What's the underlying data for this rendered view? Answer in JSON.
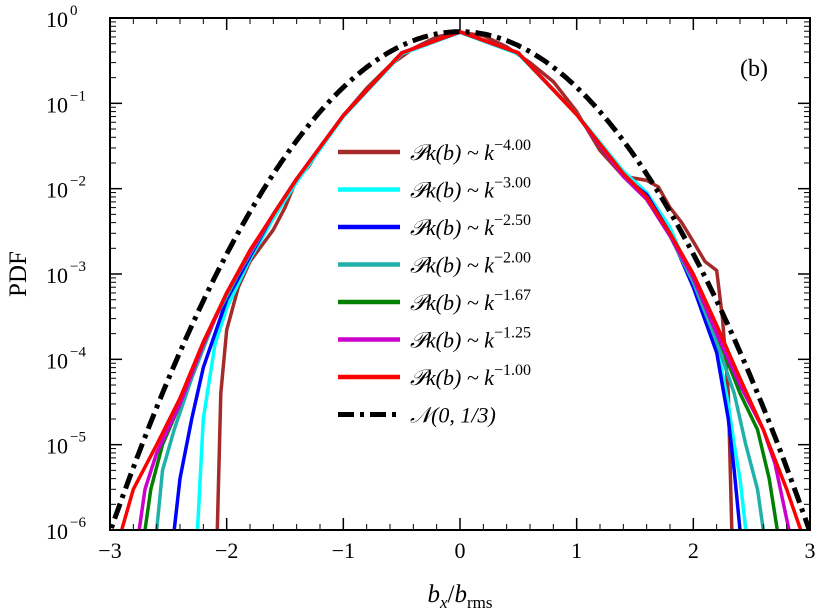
{
  "chart_data": {
    "type": "line",
    "panel_label": "(b)",
    "xlabel_main": "b",
    "xlabel_main_sub": "x",
    "xlabel_slash": "/",
    "xlabel_denom": "b",
    "xlabel_denom_sub": "rms",
    "ylabel": "PDF",
    "xlim": [
      -3,
      3
    ],
    "ylim": [
      1e-06,
      1
    ],
    "yscale": "log",
    "x_ticks": [
      -3,
      -2,
      -1,
      0,
      1,
      2,
      3
    ],
    "x_tick_labels": [
      "−3",
      "−2",
      "−1",
      "0",
      "1",
      "2",
      "3"
    ],
    "y_ticks": [
      {
        "value": 1e-06,
        "base": "10",
        "exp": "−6"
      },
      {
        "value": 1e-05,
        "base": "10",
        "exp": "−5"
      },
      {
        "value": 0.0001,
        "base": "10",
        "exp": "−4"
      },
      {
        "value": 0.001,
        "base": "10",
        "exp": "−3"
      },
      {
        "value": 0.01,
        "base": "10",
        "exp": "−2"
      },
      {
        "value": 0.1,
        "base": "10",
        "exp": "−1"
      },
      {
        "value": 1,
        "base": "10",
        "exp": "0"
      }
    ],
    "legend_position": "center",
    "grid": false,
    "series": [
      {
        "legend_main": "𝒫k(b) ~ k",
        "legend_exp": "−4.00",
        "color": "#a52a2a",
        "range": [
          -2.08,
          2.33
        ],
        "points": [
          [
            -2.08,
            1e-06
          ],
          [
            -2.05,
            4e-05
          ],
          [
            -2.0,
            0.00022
          ],
          [
            -1.9,
            0.0007
          ],
          [
            -1.8,
            0.0014
          ],
          [
            -1.6,
            0.0033
          ],
          [
            -1.5,
            0.006
          ],
          [
            -1.4,
            0.013
          ],
          [
            -1.3,
            0.018
          ],
          [
            -1.2,
            0.03
          ],
          [
            -1.0,
            0.072
          ],
          [
            -0.8,
            0.15
          ],
          [
            -0.6,
            0.28
          ],
          [
            -0.4,
            0.44
          ],
          [
            -0.2,
            0.6
          ],
          [
            0,
            0.68
          ],
          [
            0.2,
            0.62
          ],
          [
            0.4,
            0.46
          ],
          [
            0.6,
            0.3
          ],
          [
            0.8,
            0.18
          ],
          [
            1.0,
            0.08
          ],
          [
            1.2,
            0.028
          ],
          [
            1.4,
            0.014
          ],
          [
            1.6,
            0.0125
          ],
          [
            1.7,
            0.0105
          ],
          [
            1.8,
            0.006
          ],
          [
            1.9,
            0.004
          ],
          [
            2.0,
            0.0024
          ],
          [
            2.1,
            0.0014
          ],
          [
            2.2,
            0.0011
          ],
          [
            2.25,
            0.0003
          ],
          [
            2.3,
            4e-05
          ],
          [
            2.33,
            1e-06
          ]
        ]
      },
      {
        "legend_main": "𝒫k(b) ~ k",
        "legend_exp": "−3.00",
        "color": "#00ffff",
        "range": [
          -2.25,
          2.45
        ],
        "points": [
          [
            -2.25,
            1e-06
          ],
          [
            -2.2,
            2e-05
          ],
          [
            -2.1,
            0.00015
          ],
          [
            -2.0,
            0.0004
          ],
          [
            -1.8,
            0.0015
          ],
          [
            -1.6,
            0.0045
          ],
          [
            -1.4,
            0.012
          ],
          [
            -1.0,
            0.07
          ],
          [
            -0.5,
            0.38
          ],
          [
            0,
            0.68
          ],
          [
            0.5,
            0.38
          ],
          [
            1.0,
            0.075
          ],
          [
            1.4,
            0.016
          ],
          [
            1.6,
            0.009
          ],
          [
            1.8,
            0.0035
          ],
          [
            2.0,
            0.0008
          ],
          [
            2.2,
            0.00015
          ],
          [
            2.3,
            3e-05
          ],
          [
            2.35,
            1e-05
          ],
          [
            2.4,
            4e-06
          ],
          [
            2.45,
            1e-06
          ]
        ]
      },
      {
        "legend_main": "𝒫k(b) ~ k",
        "legend_exp": "−2.50",
        "color": "#0000ff",
        "range": [
          -2.45,
          2.4
        ],
        "points": [
          [
            -2.45,
            1e-06
          ],
          [
            -2.4,
            4e-06
          ],
          [
            -2.3,
            2e-05
          ],
          [
            -2.2,
            8e-05
          ],
          [
            -2.0,
            0.0005
          ],
          [
            -1.8,
            0.0016
          ],
          [
            -1.6,
            0.005
          ],
          [
            -1.4,
            0.013
          ],
          [
            -1.0,
            0.072
          ],
          [
            -0.5,
            0.39
          ],
          [
            0,
            0.69
          ],
          [
            0.5,
            0.39
          ],
          [
            1.0,
            0.074
          ],
          [
            1.4,
            0.014
          ],
          [
            1.6,
            0.0085
          ],
          [
            1.8,
            0.003
          ],
          [
            2.0,
            0.0007
          ],
          [
            2.2,
            0.00012
          ],
          [
            2.3,
            2e-05
          ],
          [
            2.35,
            5e-06
          ],
          [
            2.4,
            1e-06
          ]
        ]
      },
      {
        "legend_main": "𝒫k(b) ~ k",
        "legend_exp": "−2.00",
        "color": "#20b2aa",
        "range": [
          -2.6,
          2.6
        ],
        "points": [
          [
            -2.6,
            1e-06
          ],
          [
            -2.55,
            5e-06
          ],
          [
            -2.45,
            1.5e-05
          ],
          [
            -2.3,
            6e-05
          ],
          [
            -2.1,
            0.0003
          ],
          [
            -1.9,
            0.001
          ],
          [
            -1.6,
            0.005
          ],
          [
            -1.4,
            0.013
          ],
          [
            -1.0,
            0.072
          ],
          [
            -0.5,
            0.39
          ],
          [
            0,
            0.69
          ],
          [
            0.5,
            0.39
          ],
          [
            1.0,
            0.074
          ],
          [
            1.4,
            0.014
          ],
          [
            1.6,
            0.0075
          ],
          [
            1.8,
            0.0028
          ],
          [
            2.0,
            0.0008
          ],
          [
            2.2,
            0.00016
          ],
          [
            2.35,
            4e-05
          ],
          [
            2.45,
            1e-05
          ],
          [
            2.55,
            3e-06
          ],
          [
            2.6,
            1e-06
          ]
        ]
      },
      {
        "legend_main": "𝒫k(b) ~ k",
        "legend_exp": "−1.67",
        "color": "#008000",
        "range": [
          -2.7,
          2.72
        ],
        "points": [
          [
            -2.7,
            1e-06
          ],
          [
            -2.65,
            3e-06
          ],
          [
            -2.55,
            1e-05
          ],
          [
            -2.4,
            3e-05
          ],
          [
            -2.2,
            0.00015
          ],
          [
            -2.0,
            0.0006
          ],
          [
            -1.8,
            0.0018
          ],
          [
            -1.6,
            0.005
          ],
          [
            -1.4,
            0.013
          ],
          [
            -1.0,
            0.072
          ],
          [
            -0.5,
            0.39
          ],
          [
            0,
            0.69
          ],
          [
            0.5,
            0.39
          ],
          [
            1.0,
            0.074
          ],
          [
            1.4,
            0.014
          ],
          [
            1.6,
            0.0075
          ],
          [
            1.8,
            0.0028
          ],
          [
            2.0,
            0.0009
          ],
          [
            2.2,
            0.0002
          ],
          [
            2.4,
            4e-05
          ],
          [
            2.55,
            1.5e-05
          ],
          [
            2.65,
            4e-06
          ],
          [
            2.72,
            1e-06
          ]
        ]
      },
      {
        "legend_main": "𝒫k(b) ~ k",
        "legend_exp": "−1.25",
        "color": "#cc00cc",
        "range": [
          -2.75,
          2.82
        ],
        "points": [
          [
            -2.75,
            1e-06
          ],
          [
            -2.7,
            3e-06
          ],
          [
            -2.6,
            8e-06
          ],
          [
            -2.4,
            3e-05
          ],
          [
            -2.2,
            0.00015
          ],
          [
            -2.0,
            0.0006
          ],
          [
            -1.8,
            0.0018
          ],
          [
            -1.6,
            0.005
          ],
          [
            -1.4,
            0.013
          ],
          [
            -1.0,
            0.072
          ],
          [
            -0.5,
            0.39
          ],
          [
            0,
            0.69
          ],
          [
            0.5,
            0.39
          ],
          [
            1.0,
            0.074
          ],
          [
            1.4,
            0.014
          ],
          [
            1.6,
            0.0075
          ],
          [
            1.8,
            0.0028
          ],
          [
            2.0,
            0.0009
          ],
          [
            2.2,
            0.0002
          ],
          [
            2.4,
            5e-05
          ],
          [
            2.6,
            1.5e-05
          ],
          [
            2.7,
            6e-06
          ],
          [
            2.82,
            1e-06
          ]
        ]
      },
      {
        "legend_main": "𝒫k(b) ~ k",
        "legend_exp": "−1.00",
        "color": "#ff0000",
        "range": [
          -2.9,
          2.92
        ],
        "points": [
          [
            -2.9,
            1e-06
          ],
          [
            -2.8,
            3e-06
          ],
          [
            -2.6,
            1e-05
          ],
          [
            -2.4,
            3.5e-05
          ],
          [
            -2.2,
            0.00016
          ],
          [
            -2.0,
            0.0006
          ],
          [
            -1.8,
            0.0019
          ],
          [
            -1.6,
            0.005
          ],
          [
            -1.4,
            0.013
          ],
          [
            -1.0,
            0.072
          ],
          [
            -0.5,
            0.39
          ],
          [
            0,
            0.69
          ],
          [
            0.5,
            0.39
          ],
          [
            1.0,
            0.074
          ],
          [
            1.4,
            0.015
          ],
          [
            1.6,
            0.008
          ],
          [
            1.8,
            0.003
          ],
          [
            2.0,
            0.001
          ],
          [
            2.2,
            0.00025
          ],
          [
            2.4,
            6e-05
          ],
          [
            2.6,
            1.5e-05
          ],
          [
            2.8,
            3e-06
          ],
          [
            2.92,
            1e-06
          ]
        ]
      },
      {
        "legend_main": "𝒩(0, 1/3)",
        "legend_exp": "",
        "color": "#000000",
        "dash": "dashdot",
        "gaussian_sigma2": 0.3333
      }
    ]
  }
}
